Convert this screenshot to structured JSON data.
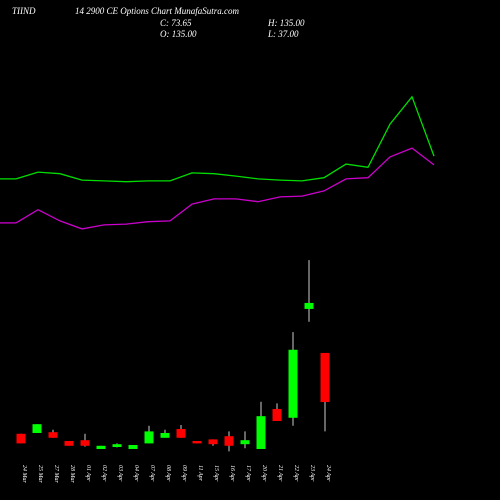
{
  "chart_data": {
    "type": "candlestick",
    "title": "TIIND",
    "subtitle": "14 2900  CE  Options  Chart  MunafaSutra.com",
    "stats": [
      {
        "name": "C:",
        "value": 73.65
      },
      {
        "name": "O:",
        "value": {
          "value": 135,
          "label": "135.00"
        }
      },
      {
        "name": "H:",
        "value": {
          "value": 135,
          "label": "135.00"
        }
      },
      {
        "name": "L:",
        "value": {
          "value": 37,
          "label": "37.00"
        }
      }
    ],
    "categories": [
      "24 Mar",
      "25 Mar",
      "27 Mar",
      "28 Mar",
      "01 Apr",
      "02 Apr",
      "03 Apr",
      "04 Apr",
      "07 Apr",
      "08 Apr",
      "09 Apr",
      "11 Apr",
      "15 Apr",
      "16 Apr",
      "17 Apr",
      "20 Apr",
      "21 Apr",
      "22 Apr",
      "23 Apr",
      "24 Apr"
    ],
    "open": [
      34,
      35,
      36,
      25,
      26,
      15,
      17.5,
      15,
      22,
      29,
      40,
      25,
      27,
      31,
      21,
      15,
      65,
      54,
      190,
      135
    ],
    "high": [
      34,
      46,
      39,
      25,
      34,
      19,
      22,
      20,
      44,
      39,
      45,
      25,
      27,
      37,
      37,
      74,
      72,
      161,
      251,
      135
    ],
    "low": [
      22,
      35,
      29,
      19,
      18,
      15,
      17,
      15,
      22,
      29,
      29,
      22,
      19,
      12,
      16,
      15,
      50,
      44,
      174,
      37
    ],
    "close": [
      22,
      46,
      29,
      19,
      19,
      19,
      21,
      20,
      37,
      35,
      29,
      22,
      21,
      19,
      26,
      56,
      50,
      139,
      197.5,
      73.65
    ],
    "up_color": "#00ff00",
    "down_color": "#ff0000",
    "lines": [
      {
        "color": "#00dd00",
        "values": [
          352.5,
          361,
          359,
          351,
          350,
          349,
          350,
          350,
          360,
          359,
          356,
          352.5,
          351,
          350,
          354,
          371,
          367,
          421,
          455,
          381
        ]
      },
      {
        "color": "#cc00cc",
        "values": [
          297.5,
          314,
          300,
          290,
          295,
          296,
          299,
          300,
          321,
          327.5,
          327.5,
          324,
          330,
          331,
          337.5,
          352.5,
          354,
          380,
          391,
          370
        ]
      }
    ],
    "ylim": [
      0,
      576
    ]
  }
}
